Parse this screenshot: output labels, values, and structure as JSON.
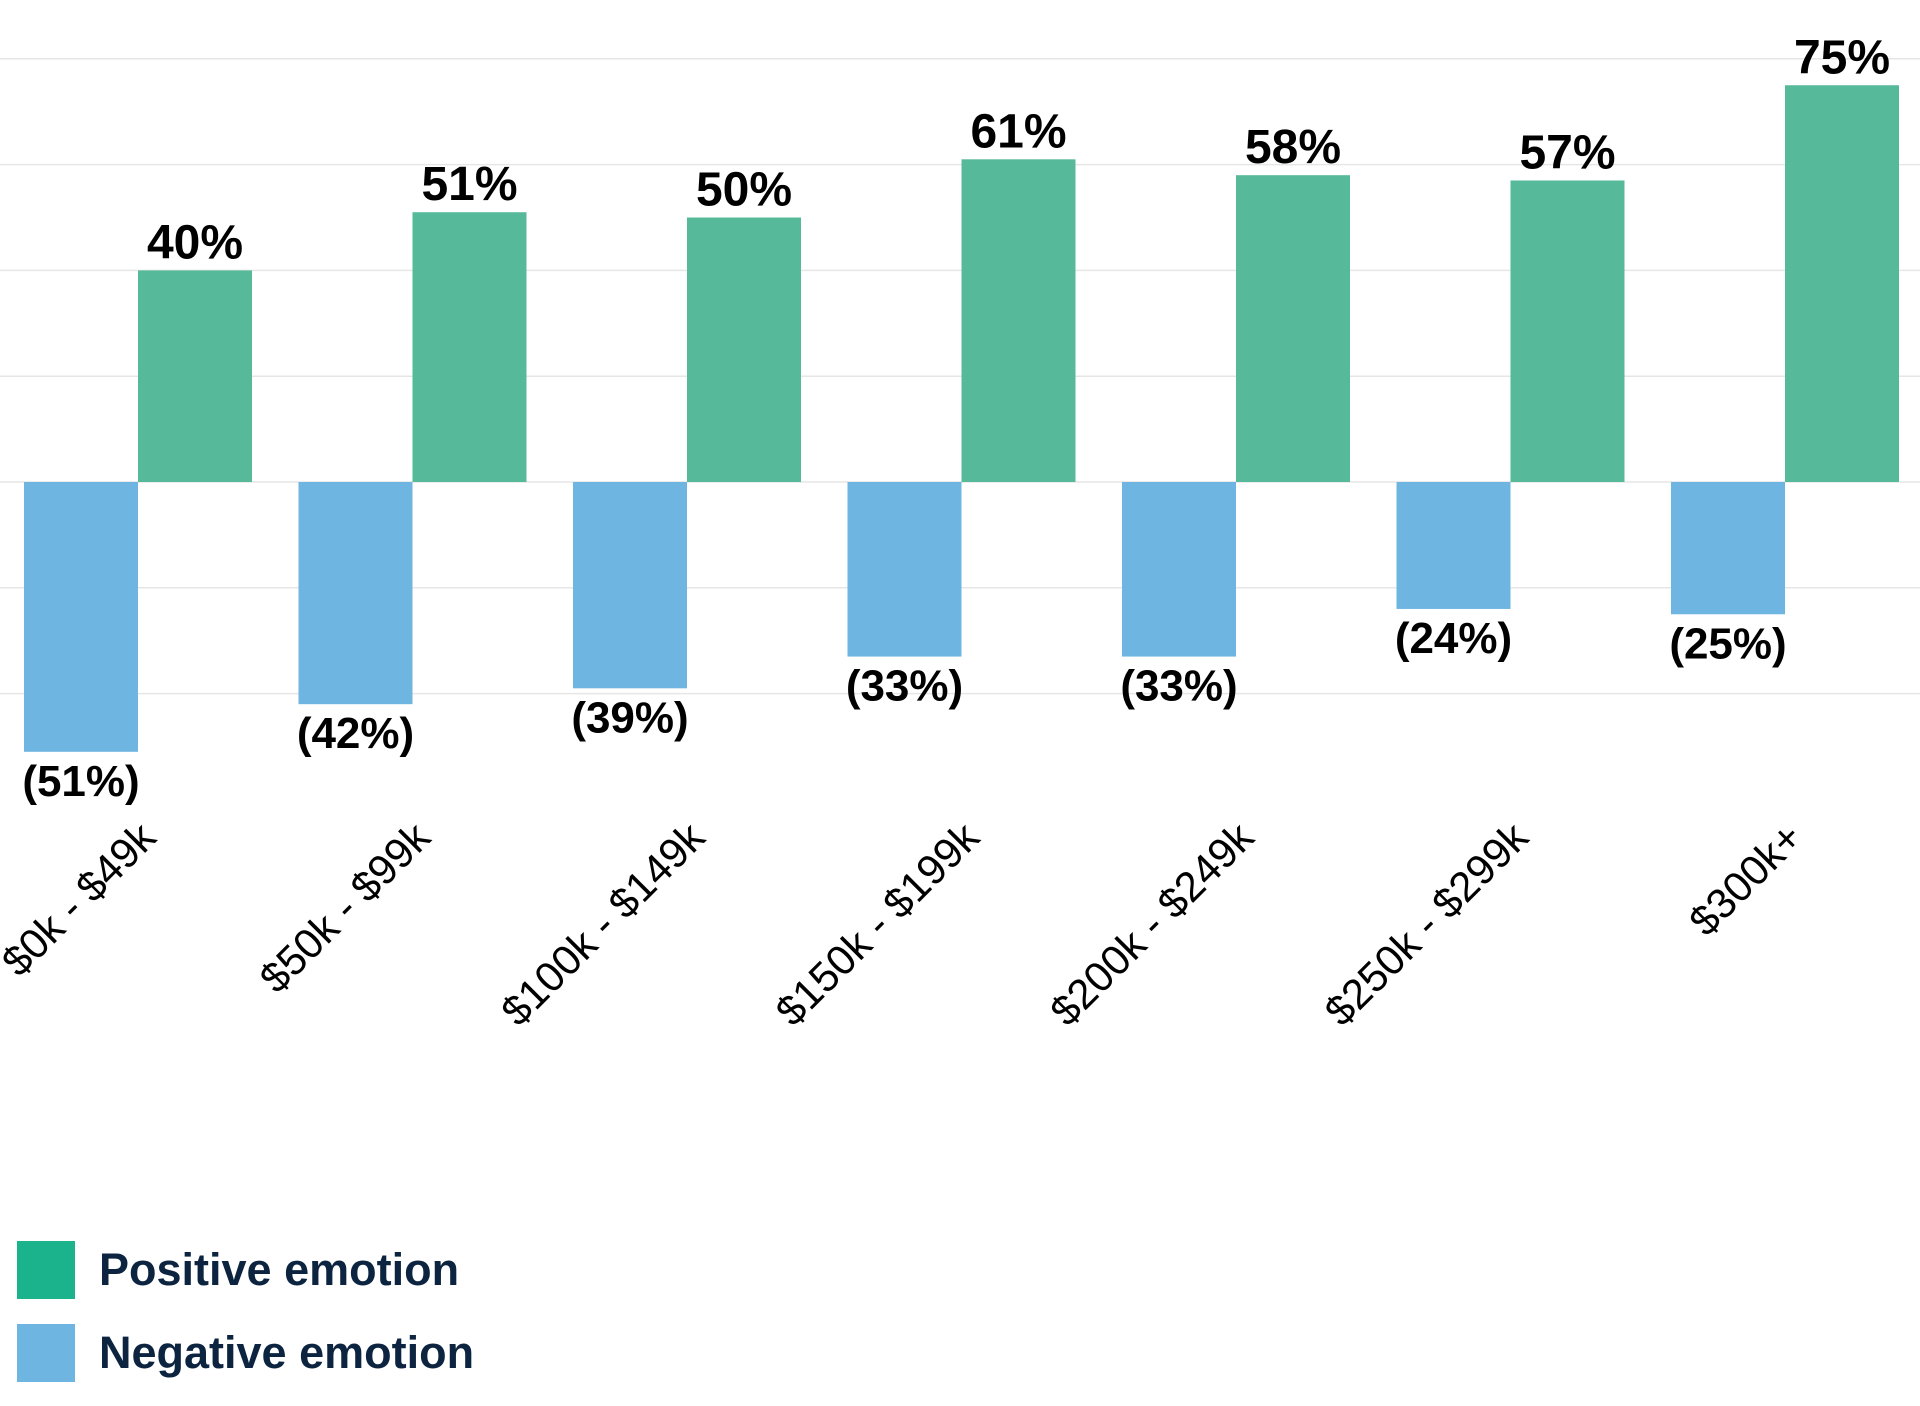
{
  "chart_data": {
    "type": "bar",
    "categories": [
      "$0k - $49k",
      "$50k - $99k",
      "$100k - $149k",
      "$150k - $199k",
      "$200k - $249k",
      "$250k - $299k",
      "$300k+"
    ],
    "series": [
      {
        "name": "Positive emotion",
        "values": [
          40,
          51,
          50,
          61,
          58,
          57,
          75
        ],
        "labels": [
          "40%",
          "51%",
          "50%",
          "61%",
          "58%",
          "57%",
          "75%"
        ],
        "color": "#56b99a"
      },
      {
        "name": "Negative emotion",
        "values": [
          -51,
          -42,
          -39,
          -33,
          -33,
          -24,
          -25
        ],
        "labels": [
          "(51%)",
          "(42%)",
          "(39%)",
          "(33%)",
          "(33%)",
          "(24%)",
          "(25%)"
        ],
        "color": "#6eb5e2"
      }
    ],
    "ylim": [
      -60,
      80
    ],
    "grid": true,
    "legend_position": "bottom-left",
    "gridline_color": "#e6e6e6"
  },
  "legend": {
    "items": [
      {
        "label": "Positive emotion",
        "color": "#1bb38c"
      },
      {
        "label": "Negative emotion",
        "color": "#6eb5e2"
      }
    ]
  }
}
